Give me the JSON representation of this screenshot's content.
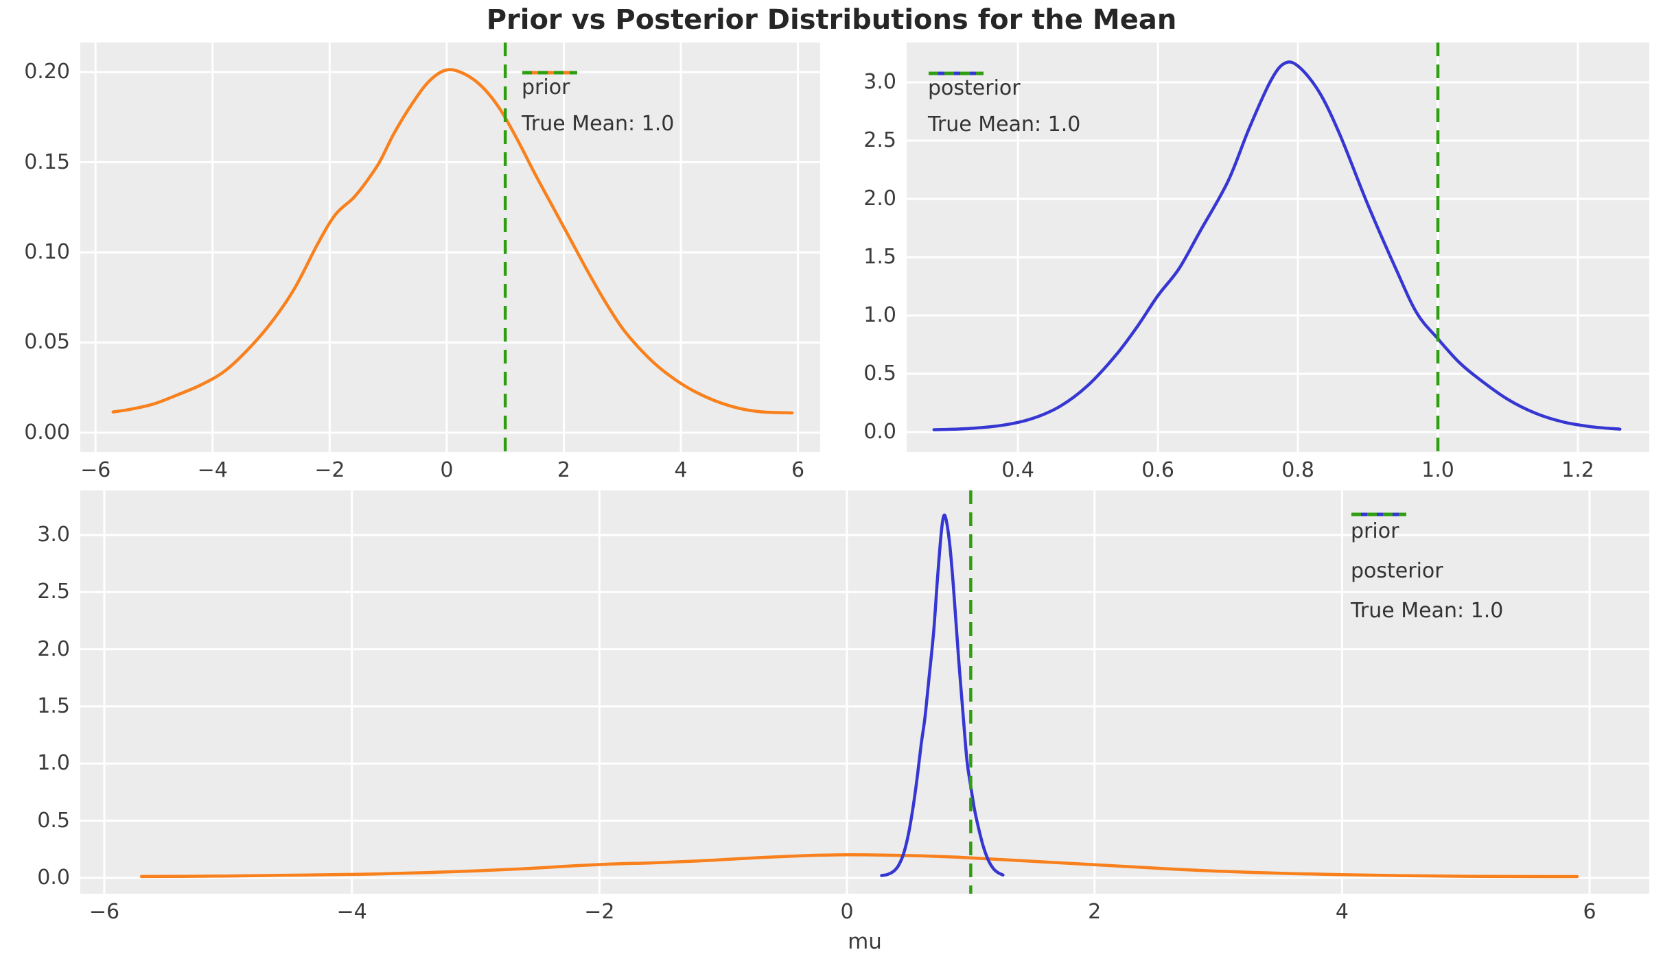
{
  "figure": {
    "title": "Prior vs Posterior Distributions for the Mean",
    "background_color": "#ffffff",
    "axes_background_color": "#ececec",
    "grid_color": "#ffffff",
    "tick_label_color": "#3b3b3b",
    "title_color": "#262626"
  },
  "colors": {
    "prior": "#f8801d",
    "posterior": "#3636d2",
    "true_mean": "#2f9e10"
  },
  "series_data": {
    "prior": [
      [
        -5.7,
        0.0115
      ],
      [
        -5.4,
        0.013
      ],
      [
        -5.0,
        0.016
      ],
      [
        -4.6,
        0.021
      ],
      [
        -4.2,
        0.0265
      ],
      [
        -3.8,
        0.034
      ],
      [
        -3.4,
        0.046
      ],
      [
        -3.0,
        0.061
      ],
      [
        -2.6,
        0.08
      ],
      [
        -2.2,
        0.105
      ],
      [
        -1.9,
        0.121
      ],
      [
        -1.6,
        0.13
      ],
      [
        -1.4,
        0.138
      ],
      [
        -1.15,
        0.15
      ],
      [
        -0.9,
        0.166
      ],
      [
        -0.6,
        0.182
      ],
      [
        -0.3,
        0.195
      ],
      [
        0.0,
        0.2012
      ],
      [
        0.3,
        0.199
      ],
      [
        0.6,
        0.192
      ],
      [
        0.9,
        0.18
      ],
      [
        1.2,
        0.163
      ],
      [
        1.5,
        0.144
      ],
      [
        1.8,
        0.126
      ],
      [
        2.1,
        0.108
      ],
      [
        2.4,
        0.09
      ],
      [
        2.7,
        0.073
      ],
      [
        3.0,
        0.058
      ],
      [
        3.3,
        0.0465
      ],
      [
        3.6,
        0.037
      ],
      [
        3.9,
        0.0295
      ],
      [
        4.2,
        0.0235
      ],
      [
        4.6,
        0.0175
      ],
      [
        5.0,
        0.0135
      ],
      [
        5.4,
        0.0115
      ],
      [
        5.9,
        0.011
      ]
    ],
    "posterior": [
      [
        0.28,
        0.02
      ],
      [
        0.33,
        0.03
      ],
      [
        0.38,
        0.06
      ],
      [
        0.42,
        0.115
      ],
      [
        0.46,
        0.22
      ],
      [
        0.5,
        0.4
      ],
      [
        0.54,
        0.66
      ],
      [
        0.57,
        0.9
      ],
      [
        0.6,
        1.17
      ],
      [
        0.63,
        1.4
      ],
      [
        0.66,
        1.72
      ],
      [
        0.7,
        2.15
      ],
      [
        0.73,
        2.6
      ],
      [
        0.76,
        3.0
      ],
      [
        0.78,
        3.16
      ],
      [
        0.8,
        3.14
      ],
      [
        0.83,
        2.92
      ],
      [
        0.86,
        2.55
      ],
      [
        0.9,
        1.95
      ],
      [
        0.94,
        1.4
      ],
      [
        0.97,
        1.02
      ],
      [
        1.0,
        0.8
      ],
      [
        1.03,
        0.6
      ],
      [
        1.06,
        0.45
      ],
      [
        1.1,
        0.28
      ],
      [
        1.14,
        0.16
      ],
      [
        1.18,
        0.085
      ],
      [
        1.22,
        0.045
      ],
      [
        1.26,
        0.025
      ]
    ]
  },
  "chart_data": [
    {
      "id": "prior-plot",
      "type": "line",
      "xlabel": "",
      "ylabel": "",
      "xlim": [
        -6.26,
        6.38
      ],
      "ylim": [
        -0.0107,
        0.2164
      ],
      "xticks": {
        "values": [
          -6,
          -4,
          -2,
          0,
          2,
          4,
          6
        ],
        "labels": [
          "−6",
          "−4",
          "−2",
          "0",
          "2",
          "4",
          "6"
        ]
      },
      "yticks": {
        "values": [
          0.0,
          0.05,
          0.1,
          0.15,
          0.2
        ],
        "labels": [
          "0.00",
          "0.05",
          "0.10",
          "0.15",
          "0.20"
        ]
      },
      "grid": true,
      "series": [
        {
          "name": "prior",
          "data_key": "prior",
          "color_key": "prior"
        }
      ],
      "vline": {
        "x": 1.0,
        "label": "True Mean: 1.0",
        "color_key": "true_mean"
      },
      "legend": {
        "position": "upper right",
        "entries": [
          {
            "label": "prior",
            "color_key": "prior",
            "dash": false
          },
          {
            "label": "True Mean: 1.0",
            "color_key": "true_mean",
            "dash": true
          }
        ]
      }
    },
    {
      "id": "posterior-plot",
      "type": "line",
      "xlabel": "",
      "ylabel": "",
      "xlim": [
        0.241,
        1.302
      ],
      "ylim": [
        -0.171,
        3.341
      ],
      "xticks": {
        "values": [
          0.4,
          0.6,
          0.8,
          1.0,
          1.2
        ],
        "labels": [
          "0.4",
          "0.6",
          "0.8",
          "1.0",
          "1.2"
        ]
      },
      "yticks": {
        "values": [
          0.0,
          0.5,
          1.0,
          1.5,
          2.0,
          2.5,
          3.0
        ],
        "labels": [
          "0.0",
          "0.5",
          "1.0",
          "1.5",
          "2.0",
          "2.5",
          "3.0"
        ]
      },
      "grid": true,
      "series": [
        {
          "name": "posterior",
          "data_key": "posterior",
          "color_key": "posterior"
        }
      ],
      "vline": {
        "x": 1.0,
        "label": "True Mean: 1.0",
        "color_key": "true_mean"
      },
      "legend": {
        "position": "upper left",
        "entries": [
          {
            "label": "posterior",
            "color_key": "posterior",
            "dash": false
          },
          {
            "label": "True Mean: 1.0",
            "color_key": "true_mean",
            "dash": true
          }
        ]
      }
    },
    {
      "id": "combined-plot",
      "type": "line",
      "xlabel": "mu",
      "ylabel": "",
      "xlim": [
        -6.194,
        6.482
      ],
      "ylim": [
        -0.139,
        3.39
      ],
      "xticks": {
        "values": [
          -6,
          -4,
          -2,
          0,
          2,
          4,
          6
        ],
        "labels": [
          "−6",
          "−4",
          "−2",
          "0",
          "2",
          "4",
          "6"
        ]
      },
      "yticks": {
        "values": [
          0.0,
          0.5,
          1.0,
          1.5,
          2.0,
          2.5,
          3.0
        ],
        "labels": [
          "0.0",
          "0.5",
          "1.0",
          "1.5",
          "2.0",
          "2.5",
          "3.0"
        ]
      },
      "grid": true,
      "series": [
        {
          "name": "prior",
          "data_key": "prior",
          "color_key": "prior"
        },
        {
          "name": "posterior",
          "data_key": "posterior",
          "color_key": "posterior"
        }
      ],
      "vline": {
        "x": 1.0,
        "label": "True Mean: 1.0",
        "color_key": "true_mean"
      },
      "legend": {
        "position": "upper right",
        "entries": [
          {
            "label": "prior",
            "color_key": "prior",
            "dash": false
          },
          {
            "label": "posterior",
            "color_key": "posterior",
            "dash": false
          },
          {
            "label": "True Mean: 1.0",
            "color_key": "true_mean",
            "dash": true
          }
        ]
      }
    }
  ]
}
